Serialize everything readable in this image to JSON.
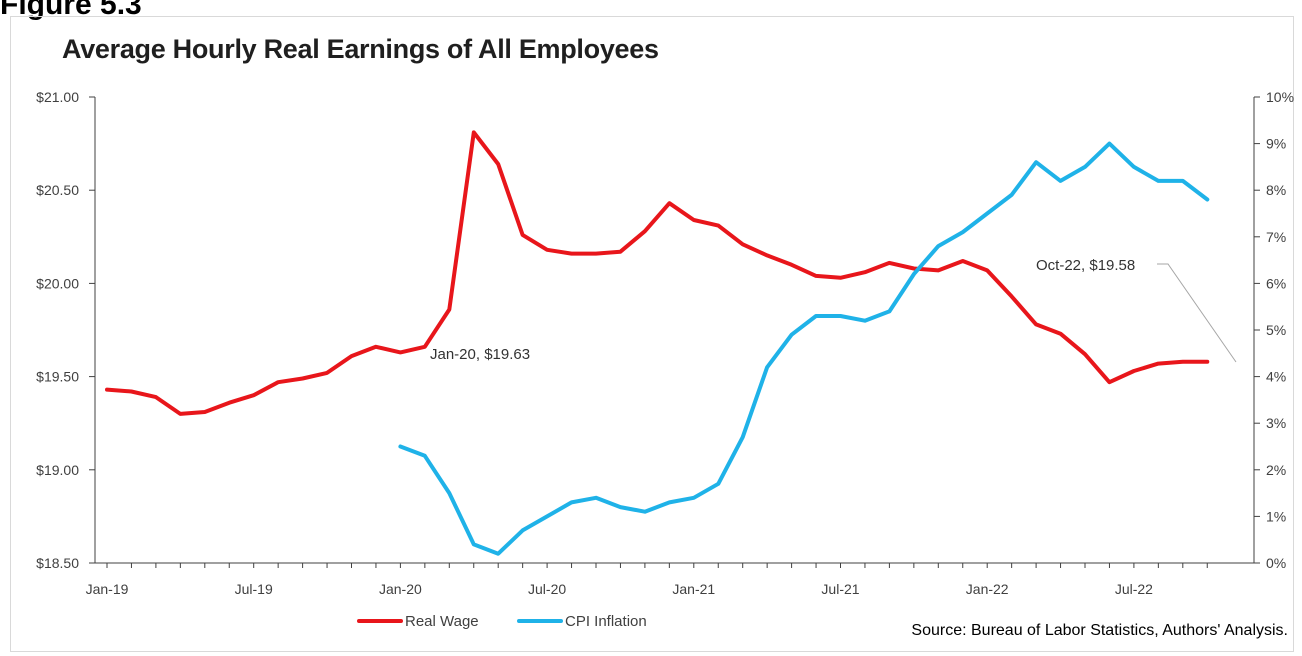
{
  "figure_heading": "Figure 5.3",
  "source": "Source: Bureau of Labor Statistics, Authors' Analysis.",
  "chart_data": {
    "type": "line",
    "title": "Average Hourly Real Earnings of All Employees",
    "x": [
      "Jan-19",
      "Feb-19",
      "Mar-19",
      "Apr-19",
      "May-19",
      "Jun-19",
      "Jul-19",
      "Aug-19",
      "Sep-19",
      "Oct-19",
      "Nov-19",
      "Dec-19",
      "Jan-20",
      "Feb-20",
      "Mar-20",
      "Apr-20",
      "May-20",
      "Jun-20",
      "Jul-20",
      "Aug-20",
      "Sep-20",
      "Oct-20",
      "Nov-20",
      "Dec-20",
      "Jan-21",
      "Feb-21",
      "Mar-21",
      "Apr-21",
      "May-21",
      "Jun-21",
      "Jul-21",
      "Aug-21",
      "Sep-21",
      "Oct-21",
      "Nov-21",
      "Dec-21",
      "Jan-22",
      "Feb-22",
      "Mar-22",
      "Apr-22",
      "May-22",
      "Jun-22",
      "Jul-22",
      "Aug-22",
      "Sep-22",
      "Oct-22"
    ],
    "x_tick_labels": [
      "Jan-19",
      "Jul-19",
      "Jan-20",
      "Jul-20",
      "Jan-21",
      "Jul-21",
      "Jan-22",
      "Jul-22"
    ],
    "series": [
      {
        "name": "Real Wage",
        "axis": "left",
        "color": "#e8161b",
        "values": [
          19.43,
          19.42,
          19.39,
          19.3,
          19.31,
          19.36,
          19.4,
          19.47,
          19.49,
          19.52,
          19.61,
          19.66,
          19.63,
          19.66,
          19.86,
          20.81,
          20.64,
          20.26,
          20.18,
          20.16,
          20.16,
          20.17,
          20.28,
          20.43,
          20.34,
          20.31,
          20.21,
          20.15,
          20.1,
          20.04,
          20.03,
          20.06,
          20.11,
          20.08,
          20.07,
          20.12,
          20.07,
          19.93,
          19.78,
          19.73,
          19.62,
          19.47,
          19.53,
          19.57,
          19.58,
          19.58
        ]
      },
      {
        "name": "CPI Inflation",
        "axis": "right",
        "color": "#1fb2e8",
        "values": [
          null,
          null,
          null,
          null,
          null,
          null,
          null,
          null,
          null,
          null,
          null,
          null,
          2.5,
          2.3,
          1.5,
          0.4,
          0.2,
          0.7,
          1.0,
          1.3,
          1.4,
          1.2,
          1.1,
          1.3,
          1.4,
          1.7,
          2.7,
          4.2,
          4.9,
          5.3,
          5.3,
          5.2,
          5.4,
          6.2,
          6.8,
          7.1,
          7.5,
          7.9,
          8.6,
          8.2,
          8.5,
          9.0,
          8.5,
          8.2,
          8.2,
          7.8
        ]
      }
    ],
    "y_left": {
      "ylim": [
        18.5,
        21.0
      ],
      "ticks": [
        "$18.50",
        "$19.00",
        "$19.50",
        "$20.00",
        "$20.50",
        "$21.00"
      ]
    },
    "y_right": {
      "ylim": [
        0,
        10
      ],
      "ticks": [
        "0%",
        "1%",
        "2%",
        "3%",
        "4%",
        "5%",
        "6%",
        "7%",
        "8%",
        "9%",
        "10%"
      ]
    },
    "annotations": [
      {
        "text": "Jan-20, $19.63"
      },
      {
        "text": "Oct-22, $19.58"
      }
    ],
    "legend_placement": "bottom-center",
    "grid": false
  }
}
